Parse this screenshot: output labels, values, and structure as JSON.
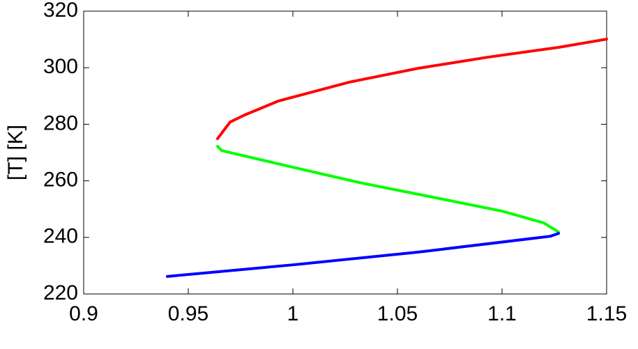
{
  "chart_data": {
    "type": "line",
    "y_label": "[T] [K]",
    "xlim": [
      0.9,
      1.15
    ],
    "xticks": [
      0.9,
      0.95,
      1,
      1.05,
      1.1,
      1.15
    ],
    "ylim": [
      220,
      320
    ],
    "yticks": [
      220,
      240,
      260,
      280,
      300,
      320
    ],
    "grid": false,
    "series": [
      {
        "color": "#ff0000",
        "x": [
          0.964,
          0.97,
          0.977,
          0.993,
          1.027,
          1.06,
          1.093,
          1.127,
          1.15
        ],
        "values": [
          274.9,
          280.8,
          283.3,
          288.2,
          294.9,
          299.8,
          303.7,
          307.2,
          310.1
        ]
      },
      {
        "color": "#00ff00",
        "x": [
          0.964,
          0.966,
          1.0,
          1.033,
          1.067,
          1.1,
          1.12,
          1.127
        ],
        "values": [
          272.2,
          270.7,
          264.8,
          259.2,
          254.2,
          249.3,
          245.1,
          241.9
        ]
      },
      {
        "color": "#0000ff",
        "x": [
          0.94,
          1.0,
          1.06,
          1.123,
          1.127
        ],
        "values": [
          226.2,
          230.3,
          234.8,
          240.4,
          241.4
        ]
      }
    ]
  }
}
